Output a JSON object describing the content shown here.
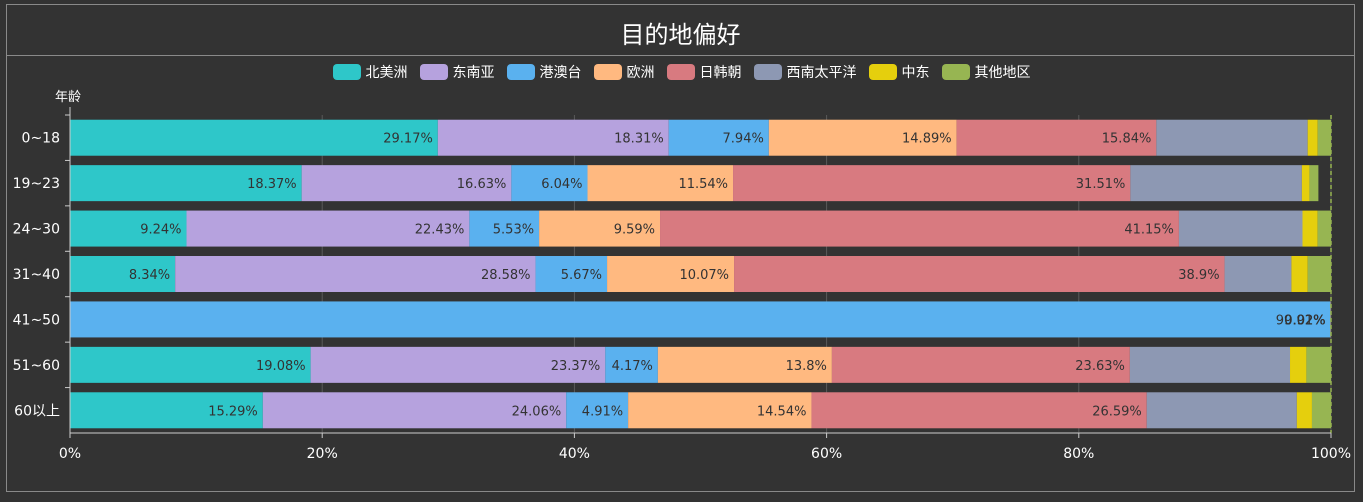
{
  "title": "目的地偏好",
  "chart_data": {
    "type": "bar",
    "orientation": "horizontal",
    "stacked": true,
    "ylabel": "年龄",
    "xlim": [
      0,
      100
    ],
    "x_ticks": [
      "0%",
      "20%",
      "40%",
      "60%",
      "80%",
      "100%"
    ],
    "categories": [
      "0~18",
      "19~23",
      "24~30",
      "31~40",
      "41~50",
      "51~60",
      "60以上"
    ],
    "legend_position": "top-center",
    "series": [
      {
        "name": "北美洲",
        "color": "#2ec7c9",
        "values": [
          29.17,
          18.37,
          9.24,
          8.34,
          0.03,
          19.08,
          15.29
        ]
      },
      {
        "name": "东南亚",
        "color": "#b6a2de",
        "values": [
          18.31,
          16.63,
          22.43,
          28.58,
          0,
          23.37,
          24.06
        ]
      },
      {
        "name": "港澳台",
        "color": "#5ab1ef",
        "values": [
          7.94,
          6.04,
          5.53,
          5.67,
          99.92,
          4.17,
          4.91
        ]
      },
      {
        "name": "欧洲",
        "color": "#ffb980",
        "values": [
          14.89,
          11.54,
          9.59,
          10.07,
          0.01,
          13.8,
          14.54
        ]
      },
      {
        "name": "日韩朝",
        "color": "#d87a80",
        "values": [
          15.84,
          31.51,
          41.15,
          38.9,
          0.02,
          23.63,
          26.59
        ]
      },
      {
        "name": "西南太平洋",
        "color": "#8d98b3",
        "values": [
          12.0,
          13.6,
          9.8,
          5.3,
          0.01,
          12.7,
          11.9
        ]
      },
      {
        "name": "中东",
        "color": "#e5cf0d",
        "values": [
          0.8,
          0.6,
          1.2,
          1.3,
          0.005,
          1.3,
          1.2
        ]
      },
      {
        "name": "其他地区",
        "color": "#97b552",
        "values": [
          1.05,
          0.71,
          1.06,
          1.84,
          0.005,
          1.95,
          1.51
        ]
      }
    ],
    "data_labels": [
      [
        "29.17%",
        "18.31%",
        "7.94%",
        "14.89%",
        "15.84%",
        "",
        "",
        ""
      ],
      [
        "18.37%",
        "16.63%",
        "6.04%",
        "11.54%",
        "31.51%",
        "",
        "",
        ""
      ],
      [
        "9.24%",
        "22.43%",
        "5.53%",
        "9.59%",
        "41.15%",
        "",
        "",
        ""
      ],
      [
        "8.34%",
        "28.58%",
        "5.67%",
        "10.07%",
        "38.9%",
        "",
        "",
        ""
      ],
      [
        "",
        "",
        "99.92%",
        "0.01%",
        "0.02%",
        "",
        "",
        ""
      ],
      [
        "19.08%",
        "23.37%",
        "4.17%",
        "13.8%",
        "23.63%",
        "",
        "",
        ""
      ],
      [
        "15.29%",
        "24.06%",
        "4.91%",
        "14.54%",
        "26.59%",
        "",
        "",
        ""
      ]
    ]
  }
}
